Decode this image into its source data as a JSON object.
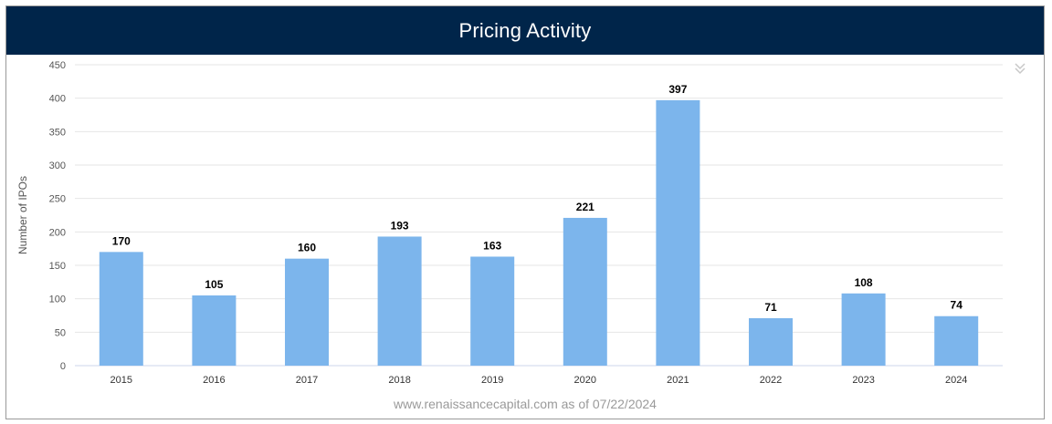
{
  "title": "Pricing Activity",
  "footer": "www.renaissancecapital.com as of 07/22/2024",
  "colors": {
    "header_bg": "#00254a",
    "bar": "#7cb5ec",
    "grid": "#e6e6e6"
  },
  "icons": {
    "menu": "chevron-double-down-icon"
  },
  "chart_data": {
    "type": "bar",
    "title": "Pricing Activity",
    "xlabel": "",
    "ylabel": "Number of IPOs",
    "ylim": [
      0,
      450
    ],
    "yticks": [
      0,
      50,
      100,
      150,
      200,
      250,
      300,
      350,
      400,
      450
    ],
    "categories": [
      "2015",
      "2016",
      "2017",
      "2018",
      "2019",
      "2020",
      "2021",
      "2022",
      "2023",
      "2024"
    ],
    "values": [
      170,
      105,
      160,
      193,
      163,
      221,
      397,
      71,
      108,
      74
    ],
    "data_labels": true,
    "grid": true,
    "legend": "none"
  }
}
